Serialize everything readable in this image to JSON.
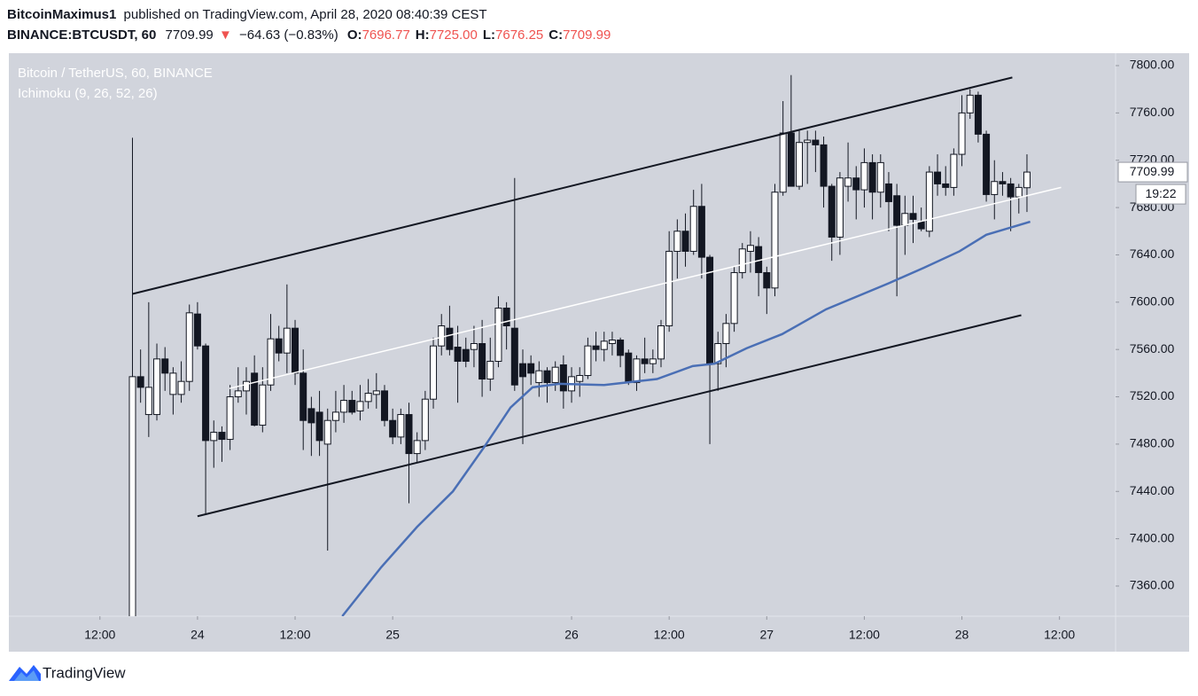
{
  "header": {
    "author": "BitcoinMaximus1",
    "published": "published on TradingView.com, April 28, 2020 08:40:39 CEST",
    "symbol": "BINANCE:BTCUSDT, 60",
    "last": "7709.99",
    "arrow": "▼",
    "change": "−64.63 (−0.83%)",
    "ohlc": [
      {
        "label": "O:",
        "value": "7696.77"
      },
      {
        "label": "H:",
        "value": "7725.00"
      },
      {
        "label": "L:",
        "value": "7676.25"
      },
      {
        "label": "C:",
        "value": "7709.99"
      }
    ]
  },
  "chart_data": {
    "type": "candlestick",
    "title": "Bitcoin / TetherUS, 60, BINANCE",
    "subtitle": "Ichimoku (9, 26, 52, 26)",
    "up_color": "#ffffff",
    "down_color": "#131722",
    "background": "#d1d4dc",
    "xlim": [
      0.8,
      136.9
    ],
    "ylim": [
      7334.5,
      7810.5
    ],
    "xticks": [
      {
        "value": 12,
        "label": "12:00"
      },
      {
        "value": 24,
        "label": "24"
      },
      {
        "value": 36,
        "label": "12:00"
      },
      {
        "value": 48,
        "label": "25"
      },
      {
        "value": 70,
        "label": "26"
      },
      {
        "value": 82,
        "label": "12:00"
      },
      {
        "value": 94,
        "label": "27"
      },
      {
        "value": 106,
        "label": "12:00"
      },
      {
        "value": 118,
        "label": "28"
      },
      {
        "value": 130,
        "label": "12:00"
      }
    ],
    "yticks": [
      {
        "value": 7360,
        "label": "7360.00"
      },
      {
        "value": 7400,
        "label": "7400.00"
      },
      {
        "value": 7440,
        "label": "7440.00"
      },
      {
        "value": 7480,
        "label": "7480.00"
      },
      {
        "value": 7520,
        "label": "7520.00"
      },
      {
        "value": 7560,
        "label": "7560.00"
      },
      {
        "value": 7600,
        "label": "7600.00"
      },
      {
        "value": 7640,
        "label": "7640.00"
      },
      {
        "value": 7680,
        "label": "7680.00"
      },
      {
        "value": 7720,
        "label": "7720.00"
      },
      {
        "value": 7760,
        "label": "7760.00"
      },
      {
        "value": 7800,
        "label": "7800.00"
      }
    ],
    "x": [
      16,
      17,
      18,
      19,
      20,
      21,
      22,
      23,
      24,
      25,
      26,
      27,
      28,
      29,
      30,
      31,
      32,
      33,
      34,
      35,
      36,
      37,
      38,
      39,
      40,
      41,
      42,
      43,
      44,
      45,
      46,
      47,
      48,
      49,
      50,
      51,
      52,
      53,
      54,
      55,
      56,
      57,
      58,
      59,
      60,
      61,
      62,
      63,
      64,
      65,
      66,
      67,
      68,
      69,
      70,
      71,
      72,
      73,
      74,
      75,
      76,
      77,
      78,
      79,
      80,
      81,
      82,
      83,
      84,
      85,
      86,
      87,
      88,
      89,
      90,
      91,
      92,
      93,
      94,
      95,
      96,
      97,
      98,
      99,
      100,
      101,
      102,
      103,
      104,
      105,
      106,
      107,
      108,
      109,
      110,
      111,
      112,
      113,
      114,
      115,
      116,
      117,
      118,
      119,
      120,
      121,
      122,
      123,
      124,
      125,
      126
    ],
    "open": [
      7310,
      7537,
      7505,
      7505,
      7552,
      7522,
      7522,
      7533,
      7590,
      7563,
      7483,
      7490,
      7484,
      7520,
      7525,
      7540,
      7496,
      7530,
      7569,
      7557,
      7578,
      7540,
      7510,
      7507,
      7480,
      7500,
      7507,
      7517,
      7508,
      7516,
      7522,
      7525,
      7500,
      7486,
      7505,
      7472,
      7483,
      7518,
      7563,
      7578,
      7562,
      7560,
      7560,
      7565,
      7535,
      7550,
      7595,
      7578,
      7548,
      7548,
      7532,
      7542,
      7532,
      7547,
      7525,
      7533,
      7538,
      7563,
      7560,
      7565,
      7568,
      7557,
      7532,
      7552,
      7548,
      7552,
      7580,
      7643,
      7660,
      7643,
      7681,
      7638,
      7548,
      7565,
      7582,
      7625,
      7643,
      7647,
      7625,
      7612,
      7693,
      7743,
      7698,
      7735,
      7737,
      7733,
      7698,
      7655,
      7698,
      7705,
      7695,
      7718,
      7693,
      7700,
      7690,
      7665,
      7675,
      7668,
      7660,
      7710,
      7700,
      7697,
      7725,
      7760,
      7775,
      7742,
      7691,
      7702,
      7700,
      7689,
      7696.77
    ],
    "high": [
      7739,
      7560,
      7600,
      7565,
      7562,
      7545,
      7550,
      7598,
      7600,
      7565,
      7500,
      7495,
      7530,
      7545,
      7545,
      7555,
      7545,
      7590,
      7580,
      7615,
      7585,
      7560,
      7520,
      7525,
      7510,
      7525,
      7530,
      7525,
      7530,
      7535,
      7540,
      7530,
      7510,
      7510,
      7515,
      7490,
      7525,
      7570,
      7590,
      7597,
      7580,
      7570,
      7580,
      7585,
      7570,
      7605,
      7600,
      7705,
      7560,
      7555,
      7550,
      7545,
      7550,
      7555,
      7545,
      7545,
      7570,
      7575,
      7575,
      7575,
      7570,
      7560,
      7555,
      7570,
      7560,
      7585,
      7660,
      7670,
      7675,
      7695,
      7700,
      7640,
      7575,
      7590,
      7630,
      7650,
      7660,
      7655,
      7630,
      7700,
      7770,
      7792,
      7745,
      7745,
      7745,
      7740,
      7700,
      7710,
      7735,
      7715,
      7730,
      7725,
      7725,
      7710,
      7700,
      7690,
      7690,
      7680,
      7715,
      7725,
      7715,
      7730,
      7775,
      7780,
      7778,
      7745,
      7720,
      7710,
      7705,
      7700,
      7725
    ],
    "low": [
      7300,
      7515,
      7486,
      7500,
      7525,
      7505,
      7515,
      7525,
      7560,
      7420,
      7460,
      7465,
      7475,
      7515,
      7505,
      7495,
      7490,
      7525,
      7550,
      7540,
      7530,
      7475,
      7470,
      7470,
      7390,
      7490,
      7498,
      7505,
      7500,
      7510,
      7510,
      7495,
      7480,
      7480,
      7430,
      7465,
      7475,
      7510,
      7555,
      7555,
      7515,
      7545,
      7545,
      7520,
      7525,
      7545,
      7560,
      7525,
      7480,
      7530,
      7520,
      7515,
      7525,
      7510,
      7515,
      7520,
      7535,
      7550,
      7550,
      7555,
      7545,
      7530,
      7525,
      7540,
      7540,
      7545,
      7575,
      7620,
      7630,
      7640,
      7620,
      7480,
      7525,
      7545,
      7575,
      7620,
      7625,
      7605,
      7590,
      7605,
      7690,
      7700,
      7695,
      7700,
      7710,
      7680,
      7635,
      7640,
      7685,
      7670,
      7680,
      7670,
      7680,
      7660,
      7605,
      7640,
      7650,
      7660,
      7655,
      7690,
      7690,
      7690,
      7715,
      7755,
      7735,
      7685,
      7670,
      7690,
      7660,
      7675,
      7676.25
    ],
    "close": [
      7537,
      7528,
      7528,
      7552,
      7540,
      7540,
      7533,
      7591,
      7563,
      7483,
      7490,
      7484,
      7520,
      7525,
      7533,
      7496,
      7530,
      7569,
      7557,
      7578,
      7540,
      7500,
      7498,
      7483,
      7500,
      7507,
      7517,
      7507,
      7516,
      7523,
      7525,
      7500,
      7486,
      7505,
      7472,
      7483,
      7518,
      7563,
      7580,
      7560,
      7550,
      7550,
      7565,
      7535,
      7550,
      7595,
      7580,
      7530,
      7537,
      7540,
      7542,
      7532,
      7545,
      7525,
      7537,
      7538,
      7563,
      7560,
      7567,
      7568,
      7555,
      7532,
      7552,
      7548,
      7552,
      7580,
      7643,
      7660,
      7643,
      7681,
      7638,
      7548,
      7565,
      7582,
      7625,
      7645,
      7648,
      7625,
      7612,
      7693,
      7743,
      7698,
      7735,
      7737,
      7733,
      7698,
      7655,
      7705,
      7705,
      7695,
      7718,
      7693,
      7718,
      7685,
      7665,
      7675,
      7670,
      7662,
      7710,
      7700,
      7697,
      7725,
      7760,
      7775,
      7742,
      7691,
      7702,
      7700,
      7689,
      7697,
      7709.99
    ],
    "trend_lines": [
      {
        "color": "#131722",
        "x": [
          16,
          124.2
        ],
        "values": [
          7607,
          7790
        ]
      },
      {
        "color": "#131722",
        "x": [
          24,
          125.3
        ],
        "values": [
          7419,
          7589
        ]
      },
      {
        "color": "#ffffff",
        "x": [
          27.9,
          130.2
        ],
        "values": [
          7527,
          7697
        ]
      }
    ],
    "overlay": {
      "color": "#4a6fb5",
      "x": [
        41.8,
        46.6,
        51,
        55.4,
        59.2,
        62.5,
        65.2,
        68.5,
        74,
        80.5,
        84.9,
        87.6,
        91.5,
        95.9,
        101.3,
        109,
        113.3,
        117.7,
        121,
        126.4
      ],
      "values": [
        7334.5,
        7376,
        7410,
        7440,
        7477,
        7511,
        7528,
        7531,
        7530,
        7535,
        7546,
        7548,
        7561,
        7573,
        7594,
        7616,
        7629,
        7643,
        7657,
        7668
      ]
    },
    "price_label": {
      "value": 7709.99,
      "label": "7709.99"
    },
    "countdown": "19:22"
  },
  "footer": {
    "brand": "TradingView"
  }
}
